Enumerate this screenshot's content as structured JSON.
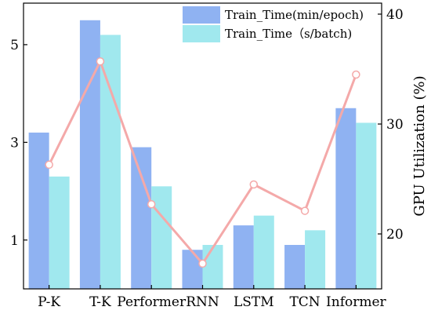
{
  "chart_data": {
    "type": "bar",
    "categories": [
      "P-K",
      "T-K",
      "Performer",
      "RNN",
      "LSTM",
      "TCN",
      "Informer"
    ],
    "series": [
      {
        "name": "Train_Time(min/epoch)",
        "axis": "left",
        "color": "#8fb2f2",
        "values": [
          3.2,
          5.5,
          2.9,
          0.8,
          1.3,
          0.9,
          3.7
        ]
      },
      {
        "name": "Train_Time（s/batch)",
        "axis": "left",
        "color": "#a0e8ee",
        "values": [
          2.3,
          5.2,
          2.1,
          0.9,
          1.5,
          1.2,
          3.4
        ]
      },
      {
        "axis": "right",
        "type": "line",
        "color": "#f4a9a9",
        "values": [
          26.3,
          35.7,
          22.7,
          17.3,
          24.5,
          22.1,
          34.5
        ]
      }
    ],
    "ylabel": "",
    "y2label": "GPU Utilization (%)",
    "xlabel": "",
    "ylim": [
      0,
      5.85
    ],
    "yticks": [
      1,
      3,
      5
    ],
    "y2lim": [
      15,
      41
    ],
    "y2ticks": [
      20,
      30,
      40
    ],
    "legend_position": "top-right",
    "grid": false
  }
}
